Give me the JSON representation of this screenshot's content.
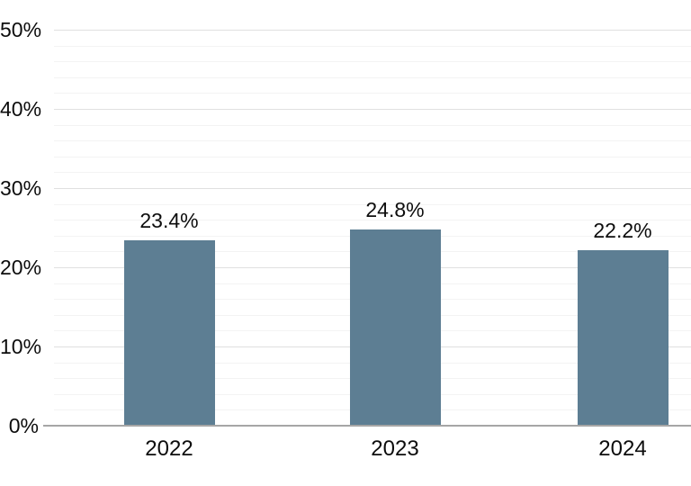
{
  "chart_data": {
    "type": "bar",
    "title": "",
    "xlabel": "",
    "ylabel": "",
    "categories": [
      "2022",
      "2023",
      "2024"
    ],
    "values": [
      23.4,
      24.8,
      22.2
    ],
    "value_labels": [
      "23.4%",
      "24.8%",
      "22.2%"
    ],
    "y_ticks": [
      {
        "value": 0,
        "label": "0%"
      },
      {
        "value": 10,
        "label": "10%"
      },
      {
        "value": 20,
        "label": "20%"
      },
      {
        "value": 30,
        "label": "30%"
      },
      {
        "value": 40,
        "label": "40%"
      },
      {
        "value": 50,
        "label": "50%"
      }
    ],
    "ylim": [
      0,
      50
    ],
    "minor_gridline_step_percent": 2,
    "major_gridline_step_percent": 10,
    "grid": "horizontal, major and minor lines, no vertical axis line",
    "legend": "none",
    "colors": {
      "bar": "#5d7e93",
      "major_gridline": "#e0e0e0",
      "minor_gridline": "#f3f3f3",
      "axis_line": "#a6a6a6",
      "text": "#0d0d0d",
      "background": "#ffffff"
    }
  }
}
